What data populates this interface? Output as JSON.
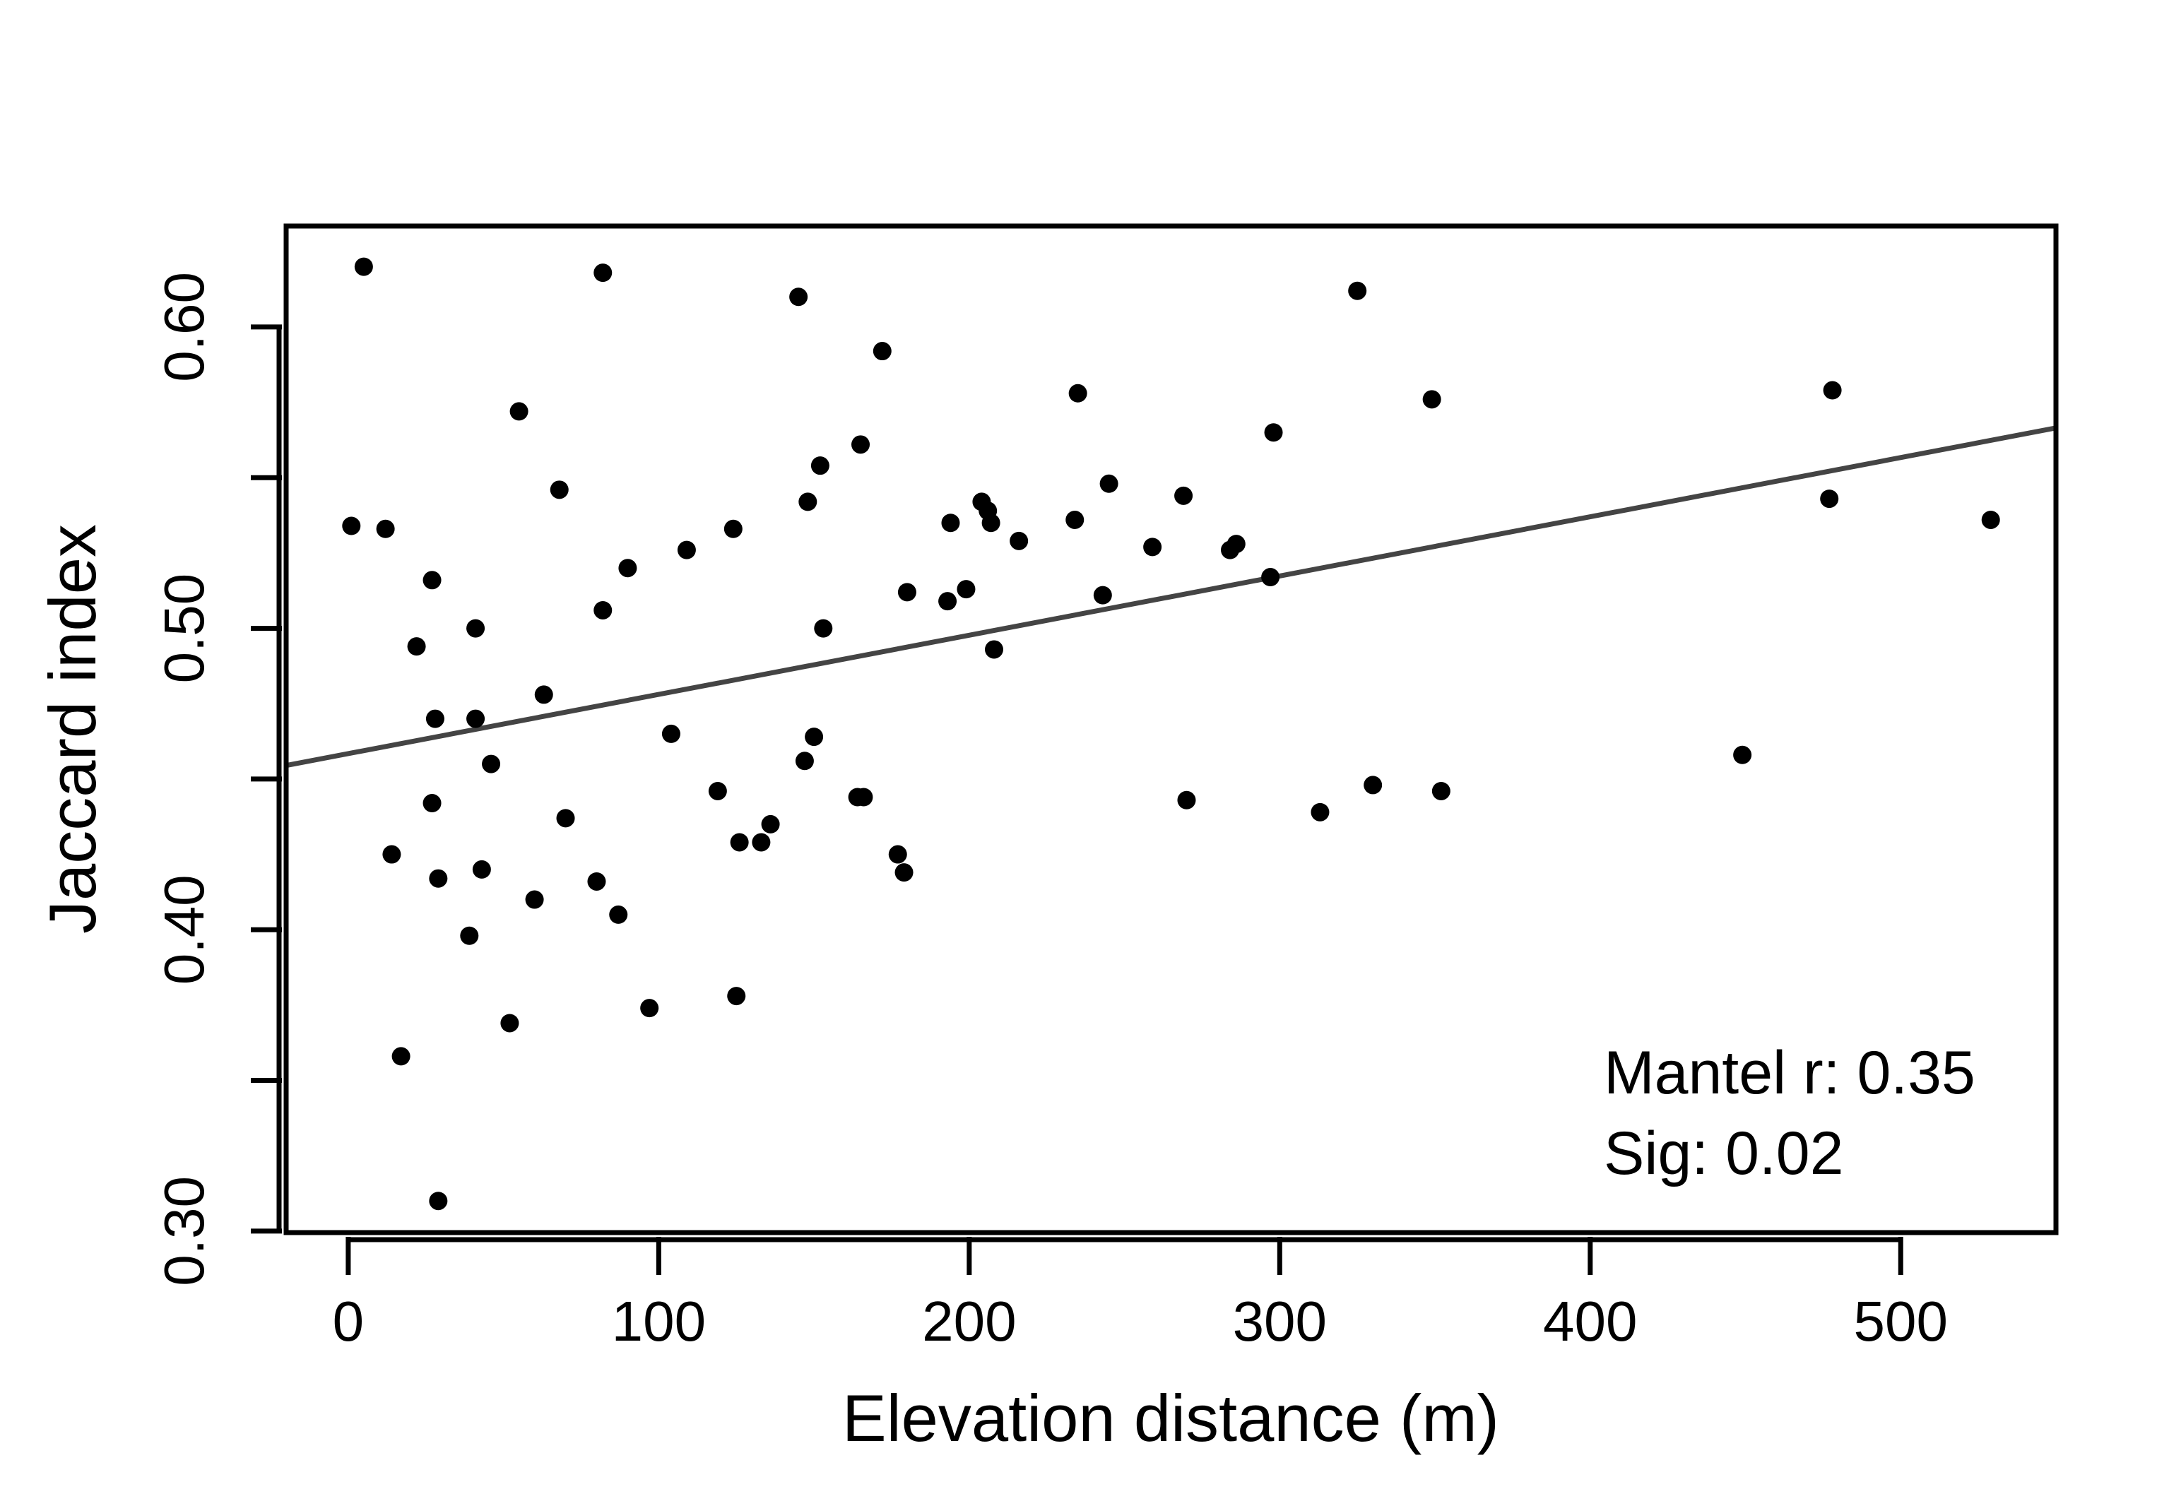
{
  "chart_data": {
    "type": "scatter",
    "title": "",
    "xlabel": "Elevation distance (m)",
    "ylabel": "Jaccard index",
    "xlim": [
      -20,
      550
    ],
    "ylim": [
      0.2995,
      0.6335
    ],
    "x_ticks": [
      0,
      100,
      200,
      300,
      400,
      500
    ],
    "x_tick_labels": [
      "0",
      "100",
      "200",
      "300",
      "400",
      "500"
    ],
    "y_ticks": [
      0.3,
      0.35,
      0.4,
      0.45,
      0.5,
      0.55,
      0.6
    ],
    "y_tick_labels": [
      "0.30",
      "",
      "0.40",
      "",
      "0.50",
      "",
      "0.60"
    ],
    "grid": false,
    "point_color": "#000000",
    "line_color": "#444444",
    "regression_line": {
      "x": [
        -20,
        550
      ],
      "y": [
        0.4545,
        0.5665
      ]
    },
    "annotations": [
      "Mantel r: 0.35",
      "Sig: 0.02"
    ],
    "points": [
      [
        1,
        0.534
      ],
      [
        5,
        0.62
      ],
      [
        12,
        0.533
      ],
      [
        14,
        0.425
      ],
      [
        17,
        0.358
      ],
      [
        22,
        0.494
      ],
      [
        27,
        0.516
      ],
      [
        27,
        0.442
      ],
      [
        28,
        0.47
      ],
      [
        29,
        0.417
      ],
      [
        29,
        0.31
      ],
      [
        39,
        0.398
      ],
      [
        41,
        0.47
      ],
      [
        41,
        0.5
      ],
      [
        43,
        0.42
      ],
      [
        46,
        0.455
      ],
      [
        52,
        0.369
      ],
      [
        55,
        0.572
      ],
      [
        60,
        0.41
      ],
      [
        63,
        0.478
      ],
      [
        68,
        0.546
      ],
      [
        70,
        0.437
      ],
      [
        80,
        0.416
      ],
      [
        82,
        0.506
      ],
      [
        82,
        0.618
      ],
      [
        87,
        0.405
      ],
      [
        90,
        0.52
      ],
      [
        97,
        0.374
      ],
      [
        104,
        0.465
      ],
      [
        109,
        0.526
      ],
      [
        119,
        0.446
      ],
      [
        124,
        0.533
      ],
      [
        125,
        0.378
      ],
      [
        126,
        0.429
      ],
      [
        133,
        0.429
      ],
      [
        136,
        0.435
      ],
      [
        145,
        0.61
      ],
      [
        147,
        0.456
      ],
      [
        148,
        0.542
      ],
      [
        150,
        0.464
      ],
      [
        152,
        0.554
      ],
      [
        153,
        0.5
      ],
      [
        164,
        0.444
      ],
      [
        165,
        0.561
      ],
      [
        166,
        0.444
      ],
      [
        172,
        0.592
      ],
      [
        177,
        0.425
      ],
      [
        179,
        0.419
      ],
      [
        180,
        0.512
      ],
      [
        193,
        0.509
      ],
      [
        194,
        0.535
      ],
      [
        199,
        0.513
      ],
      [
        204,
        0.542
      ],
      [
        206,
        0.539
      ],
      [
        207,
        0.535
      ],
      [
        208,
        0.493
      ],
      [
        216,
        0.529
      ],
      [
        234,
        0.536
      ],
      [
        235,
        0.578
      ],
      [
        243,
        0.511
      ],
      [
        245,
        0.548
      ],
      [
        259,
        0.527
      ],
      [
        269,
        0.544
      ],
      [
        270,
        0.443
      ],
      [
        284,
        0.526
      ],
      [
        286,
        0.528
      ],
      [
        297,
        0.517
      ],
      [
        298,
        0.565
      ],
      [
        313,
        0.439
      ],
      [
        325,
        0.612
      ],
      [
        330,
        0.448
      ],
      [
        349,
        0.576
      ],
      [
        352,
        0.446
      ],
      [
        449,
        0.458
      ],
      [
        477,
        0.543
      ],
      [
        478,
        0.579
      ],
      [
        529,
        0.536
      ]
    ]
  }
}
